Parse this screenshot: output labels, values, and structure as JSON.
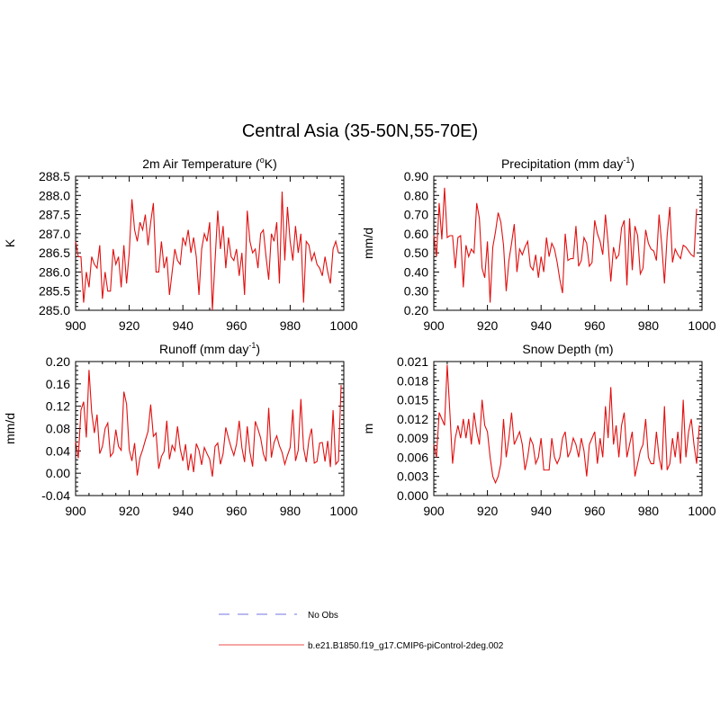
{
  "figure": {
    "title": "Central Asia (35-50N,55-70E)",
    "legend": [
      {
        "label": "No Obs",
        "color": "#8f8fe6",
        "dash": "dashed"
      },
      {
        "label": "b.e21.B1850.f19_g17.CMIP6-piControl-2deg.002",
        "color": "#f07070",
        "dash": "solid"
      }
    ]
  },
  "chart_data": [
    {
      "type": "line",
      "title_main": "2m Air Temperature (",
      "title_sup": "o",
      "title_rest": "K)",
      "ylabel": "K",
      "xlim": [
        900,
        1000
      ],
      "ylim": [
        285.0,
        288.5
      ],
      "xticks": [
        900,
        920,
        940,
        960,
        980,
        1000
      ],
      "yticks": [
        "285.0",
        "285.5",
        "286.0",
        "286.5",
        "287.0",
        "287.5",
        "288.0",
        "288.5"
      ],
      "ytick_values": [
        285.0,
        285.5,
        286.0,
        286.5,
        287.0,
        287.5,
        288.0,
        288.5
      ],
      "series": [
        {
          "name": "b.e21.B1850.f19_g17.CMIP6-piControl-2deg.002",
          "color": "#e01010",
          "x_start": 900,
          "values": [
            286.8,
            286.4,
            286.4,
            285.2,
            286.0,
            285.6,
            286.4,
            286.2,
            286.1,
            286.7,
            285.3,
            286.0,
            285.5,
            285.5,
            286.6,
            286.2,
            286.4,
            285.6,
            286.7,
            285.7,
            286.5,
            287.9,
            287.1,
            286.8,
            287.3,
            287.1,
            287.5,
            286.7,
            287.3,
            287.8,
            286.0,
            286.0,
            286.8,
            286.1,
            286.4,
            285.4,
            286.0,
            286.6,
            286.3,
            286.2,
            286.9,
            286.7,
            287.1,
            286.5,
            286.9,
            286.4,
            285.4,
            286.6,
            287.0,
            286.8,
            287.3,
            285.0,
            286.3,
            287.6,
            286.6,
            287.2,
            286.1,
            286.9,
            286.4,
            286.3,
            286.6,
            285.9,
            286.5,
            285.4,
            287.6,
            286.8,
            286.5,
            286.6,
            286.1,
            287.0,
            287.1,
            286.4,
            285.8,
            287.0,
            286.8,
            287.3,
            285.7,
            288.1,
            286.3,
            287.7,
            286.8,
            286.3,
            287.2,
            286.5,
            287.0,
            285.2,
            286.8,
            286.7,
            286.3,
            286.5,
            286.2,
            286.1,
            285.9,
            286.4,
            286.0,
            285.7,
            286.6,
            286.8,
            286.5
          ]
        }
      ]
    },
    {
      "type": "line",
      "title_main": "Precipitation (mm day",
      "title_sup": "-1",
      "title_rest": ")",
      "ylabel": "mm/d",
      "xlim": [
        900,
        1000
      ],
      "ylim": [
        0.2,
        0.9
      ],
      "xticks": [
        900,
        920,
        940,
        960,
        980,
        1000
      ],
      "yticks": [
        "0.20",
        "0.30",
        "0.40",
        "0.50",
        "0.60",
        "0.70",
        "0.80",
        "0.90"
      ],
      "ytick_values": [
        0.2,
        0.3,
        0.4,
        0.5,
        0.6,
        0.7,
        0.8,
        0.9
      ],
      "series": [
        {
          "name": "b.e21.B1850.f19_g17.CMIP6-piControl-2deg.002",
          "color": "#e01010",
          "x_start": 900,
          "values": [
            0.59,
            0.48,
            0.76,
            0.57,
            0.84,
            0.58,
            0.59,
            0.59,
            0.42,
            0.58,
            0.59,
            0.32,
            0.54,
            0.48,
            0.52,
            0.5,
            0.76,
            0.68,
            0.42,
            0.37,
            0.56,
            0.24,
            0.53,
            0.61,
            0.71,
            0.66,
            0.54,
            0.3,
            0.46,
            0.55,
            0.65,
            0.4,
            0.52,
            0.49,
            0.53,
            0.56,
            0.43,
            0.41,
            0.49,
            0.37,
            0.48,
            0.4,
            0.58,
            0.48,
            0.55,
            0.52,
            0.45,
            0.36,
            0.29,
            0.6,
            0.46,
            0.47,
            0.47,
            0.64,
            0.43,
            0.46,
            0.58,
            0.55,
            0.43,
            0.45,
            0.67,
            0.6,
            0.56,
            0.49,
            0.7,
            0.55,
            0.35,
            0.53,
            0.47,
            0.49,
            0.63,
            0.67,
            0.33,
            0.68,
            0.41,
            0.64,
            0.59,
            0.39,
            0.42,
            0.62,
            0.55,
            0.52,
            0.51,
            0.46,
            0.7,
            0.54,
            0.34,
            0.59,
            0.74,
            0.45,
            0.52,
            0.49,
            0.47,
            0.54,
            0.53,
            0.51,
            0.49,
            0.48,
            0.73
          ]
        }
      ]
    },
    {
      "type": "line",
      "title_main": "Runoff (mm day",
      "title_sup": "-1",
      "title_rest": ")",
      "ylabel": "mm/d",
      "xlim": [
        900,
        1000
      ],
      "ylim": [
        -0.04,
        0.2
      ],
      "xticks": [
        900,
        920,
        940,
        960,
        980,
        1000
      ],
      "yticks": [
        "-0.04",
        "0.00",
        "0.04",
        "0.08",
        "0.12",
        "0.16",
        "0.20"
      ],
      "ytick_values": [
        -0.04,
        0.0,
        0.04,
        0.08,
        0.12,
        0.16,
        0.2
      ],
      "series": [
        {
          "name": "b.e21.B1850.f19_g17.CMIP6-piControl-2deg.002",
          "color": "#e01010",
          "x_start": 900,
          "values": [
            0.057,
            0.027,
            0.113,
            0.128,
            0.064,
            0.185,
            0.109,
            0.072,
            0.105,
            0.035,
            0.048,
            0.08,
            0.09,
            0.03,
            0.037,
            0.078,
            0.048,
            0.041,
            0.146,
            0.124,
            0.042,
            0.022,
            0.054,
            -0.004,
            0.028,
            0.042,
            0.059,
            0.075,
            0.123,
            0.066,
            0.072,
            0.008,
            0.03,
            0.039,
            0.094,
            0.025,
            0.05,
            0.04,
            0.084,
            0.044,
            0.022,
            0.052,
            0.005,
            0.035,
            0.002,
            0.053,
            0.041,
            0.015,
            0.046,
            0.035,
            0.025,
            -0.006,
            0.048,
            0.054,
            0.016,
            0.035,
            0.082,
            0.063,
            0.046,
            0.032,
            0.052,
            0.094,
            0.046,
            0.02,
            0.084,
            0.038,
            0.012,
            0.093,
            0.079,
            0.063,
            0.035,
            0.021,
            0.117,
            0.028,
            0.055,
            0.067,
            0.049,
            0.037,
            0.016,
            0.032,
            0.046,
            0.114,
            0.022,
            0.041,
            0.133,
            0.045,
            0.02,
            0.06,
            0.08,
            0.018,
            0.021,
            0.054,
            0.055,
            0.021,
            0.058,
            0.011,
            0.113,
            0.016,
            0.022,
            0.158
          ]
        }
      ]
    },
    {
      "type": "line",
      "title_main": "Snow Depth (m)",
      "title_sup": "",
      "title_rest": "",
      "ylabel": "m",
      "xlim": [
        900,
        1000
      ],
      "ylim": [
        0.0,
        0.021
      ],
      "xticks": [
        900,
        920,
        940,
        960,
        980,
        1000
      ],
      "yticks": [
        "0.000",
        "0.003",
        "0.006",
        "0.009",
        "0.012",
        "0.015",
        "0.018",
        "0.021"
      ],
      "ytick_values": [
        0.0,
        0.003,
        0.006,
        0.009,
        0.012,
        0.015,
        0.018,
        0.021
      ],
      "series": [
        {
          "name": "b.e21.B1850.f19_g17.CMIP6-piControl-2deg.002",
          "color": "#e01010",
          "x_start": 900,
          "values": [
            0.008,
            0.006,
            0.013,
            0.012,
            0.011,
            0.0205,
            0.013,
            0.005,
            0.009,
            0.011,
            0.009,
            0.012,
            0.009,
            0.012,
            0.008,
            0.013,
            0.01,
            0.008,
            0.015,
            0.011,
            0.01,
            0.006,
            0.003,
            0.002,
            0.003,
            0.005,
            0.012,
            0.006,
            0.009,
            0.013,
            0.008,
            0.009,
            0.01,
            0.008,
            0.004,
            0.006,
            0.009,
            0.008,
            0.005,
            0.006,
            0.009,
            0.004,
            0.004,
            0.004,
            0.009,
            0.006,
            0.005,
            0.006,
            0.009,
            0.01,
            0.006,
            0.007,
            0.009,
            0.008,
            0.006,
            0.009,
            0.007,
            0.003,
            0.008,
            0.009,
            0.01,
            0.005,
            0.009,
            0.006,
            0.014,
            0.009,
            0.017,
            0.008,
            0.011,
            0.006,
            0.011,
            0.013,
            0.006,
            0.008,
            0.01,
            0.003,
            0.005,
            0.007,
            0.008,
            0.012,
            0.006,
            0.005,
            0.005,
            0.01,
            0.006,
            0.004,
            0.014,
            0.004,
            0.005,
            0.009,
            0.006,
            0.01,
            0.005,
            0.015,
            0.006,
            0.01,
            0.012,
            0.008,
            0.005,
            0.011
          ]
        }
      ]
    }
  ]
}
